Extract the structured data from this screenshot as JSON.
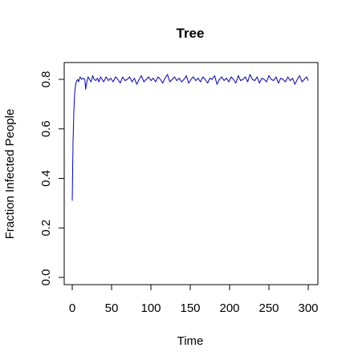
{
  "chart_data": {
    "type": "line",
    "title": "Tree",
    "xlabel": "Time",
    "ylabel": "Fraction Infected People",
    "xlim": [
      0,
      300
    ],
    "ylim": [
      0,
      0.8
    ],
    "xticks": [
      "0",
      "50",
      "100",
      "150",
      "200",
      "250",
      "300"
    ],
    "yticks": [
      "0.0",
      "0.2",
      "0.4",
      "0.6",
      "0.8"
    ],
    "grid": false,
    "series_color": "#0000cc",
    "series": [
      {
        "x": [
          0,
          1,
          2,
          3,
          4,
          5,
          6,
          7,
          8,
          10,
          12,
          14,
          16,
          17,
          18,
          20,
          22,
          24,
          26,
          28,
          30,
          32,
          34,
          36,
          38,
          40,
          43,
          46,
          49,
          52,
          55,
          58,
          61,
          64,
          67,
          70,
          73,
          76,
          79,
          82,
          85,
          88,
          91,
          94,
          97,
          100,
          103,
          106,
          109,
          112,
          115,
          118,
          121,
          124,
          127,
          130,
          133,
          136,
          139,
          142,
          145,
          148,
          151,
          154,
          157,
          160,
          163,
          166,
          169,
          172,
          175,
          178,
          181,
          184,
          187,
          190,
          193,
          196,
          199,
          202,
          205,
          208,
          211,
          214,
          217,
          220,
          223,
          226,
          229,
          232,
          235,
          238,
          241,
          244,
          247,
          250,
          253,
          256,
          259,
          262,
          265,
          268,
          271,
          274,
          277,
          280,
          283,
          286,
          289,
          292,
          295,
          298,
          300
        ],
        "y": [
          0.31,
          0.55,
          0.67,
          0.74,
          0.77,
          0.79,
          0.795,
          0.8,
          0.79,
          0.81,
          0.8,
          0.805,
          0.8,
          0.76,
          0.78,
          0.81,
          0.8,
          0.79,
          0.815,
          0.8,
          0.795,
          0.805,
          0.79,
          0.81,
          0.8,
          0.79,
          0.81,
          0.795,
          0.805,
          0.79,
          0.81,
          0.8,
          0.785,
          0.81,
          0.795,
          0.8,
          0.81,
          0.79,
          0.805,
          0.78,
          0.8,
          0.815,
          0.79,
          0.8,
          0.81,
          0.795,
          0.805,
          0.79,
          0.81,
          0.8,
          0.785,
          0.805,
          0.82,
          0.79,
          0.8,
          0.81,
          0.795,
          0.805,
          0.79,
          0.8,
          0.815,
          0.785,
          0.8,
          0.81,
          0.795,
          0.805,
          0.79,
          0.81,
          0.8,
          0.785,
          0.805,
          0.8,
          0.815,
          0.78,
          0.8,
          0.81,
          0.795,
          0.805,
          0.79,
          0.81,
          0.8,
          0.785,
          0.815,
          0.795,
          0.8,
          0.81,
          0.79,
          0.82,
          0.8,
          0.795,
          0.81,
          0.785,
          0.805,
          0.8,
          0.79,
          0.815,
          0.8,
          0.795,
          0.81,
          0.785,
          0.805,
          0.8,
          0.79,
          0.81,
          0.795,
          0.805,
          0.78,
          0.8,
          0.815,
          0.79,
          0.8,
          0.81,
          0.795
        ]
      }
    ]
  }
}
